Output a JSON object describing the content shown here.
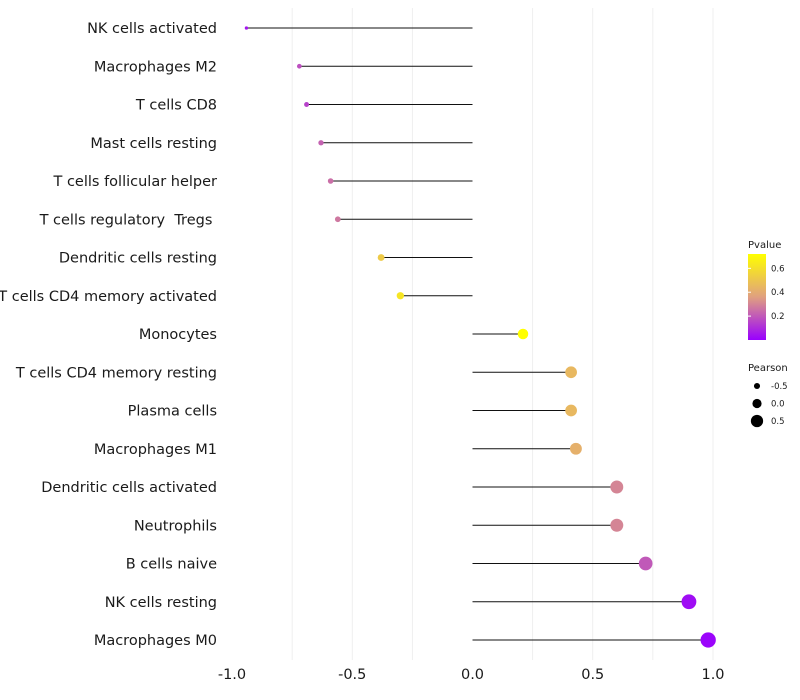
{
  "chart_data": {
    "type": "lollipop",
    "title": "",
    "xlabel": "",
    "ylabel": "",
    "xlim": [
      -1.0,
      1.0
    ],
    "x_ticks": [
      "-1.0",
      "-0.5",
      "0.0",
      "0.5",
      "1.0"
    ],
    "x_tick_values": [
      -1.0,
      -0.5,
      0.0,
      0.5,
      1.0
    ],
    "grid": "vertical",
    "categories": [
      "NK cells activated",
      "Macrophages M2",
      "T cells CD8",
      "Mast cells resting",
      "T cells follicular helper",
      "T cells regulatory  Tregs ",
      "Dendritic cells resting",
      "T cells CD4 memory activated",
      "Monocytes",
      "T cells CD4 memory resting",
      "Plasma cells",
      "Macrophages M1",
      "Dendritic cells activated",
      "Neutrophils",
      "B cells naive",
      "NK cells resting",
      "Macrophages M0"
    ],
    "pearson": [
      -0.94,
      -0.72,
      -0.69,
      -0.63,
      -0.59,
      -0.56,
      -0.38,
      -0.3,
      0.21,
      0.41,
      0.41,
      0.43,
      0.6,
      0.6,
      0.72,
      0.9,
      0.98
    ],
    "pvalue": [
      0.05,
      0.18,
      0.15,
      0.22,
      0.25,
      0.27,
      0.52,
      0.62,
      0.72,
      0.45,
      0.45,
      0.42,
      0.3,
      0.3,
      0.2,
      0.03,
      0.01
    ],
    "legend": {
      "position": "right",
      "color_title": "Pvalue",
      "color_ticks": [
        "0.6",
        "0.4",
        "0.2"
      ],
      "color_tick_values": [
        0.6,
        0.4,
        0.2
      ],
      "color_range": [
        0.0,
        0.72
      ],
      "color_low": "#9900ff",
      "color_mid": "#e0a080",
      "color_high": "#ffff00",
      "size_title": "Pearson",
      "size_labels": [
        "-0.5",
        "0.0",
        "0.5"
      ],
      "size_values": [
        -0.5,
        0.0,
        0.5
      ]
    },
    "stem_color": "#111111",
    "grid_color": "#ebebeb"
  }
}
